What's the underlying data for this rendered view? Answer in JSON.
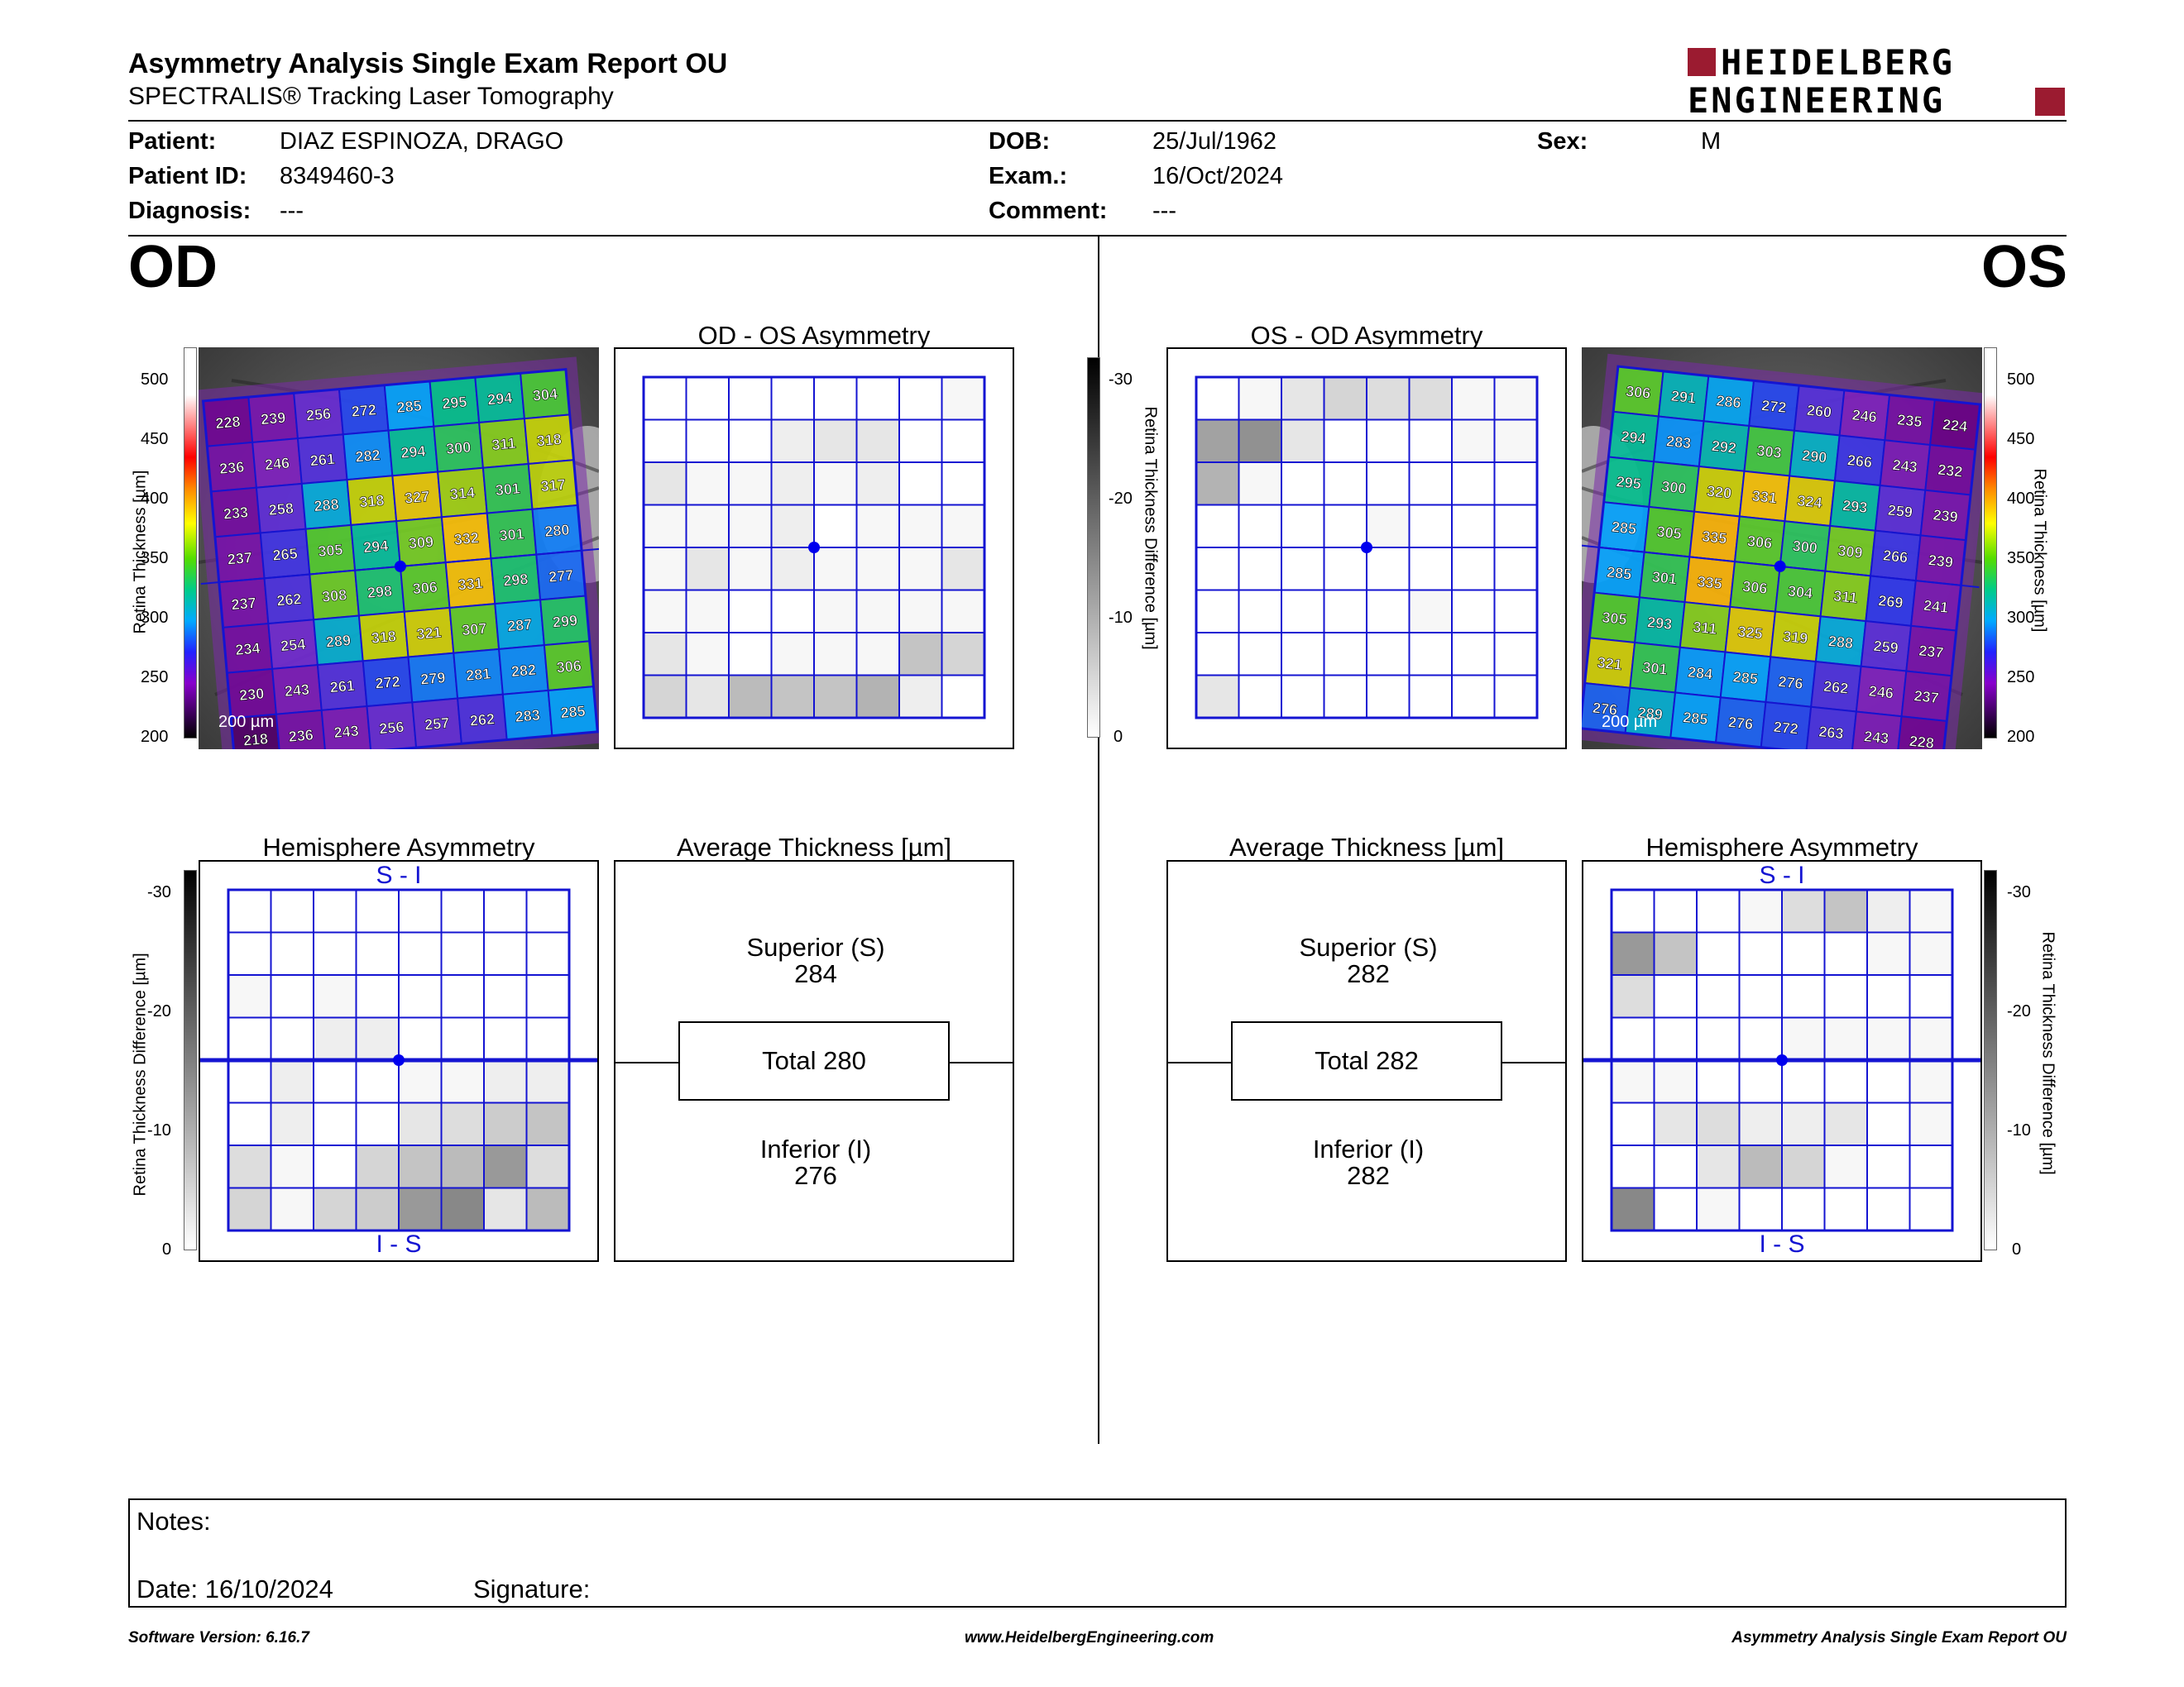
{
  "report": {
    "title": "Asymmetry Analysis Single Exam Report OU",
    "subtitle": "SPECTRALIS® Tracking Laser Tomography",
    "logo_line1": "HEIDELBERG",
    "logo_line2": "ENGINEERING",
    "brand_color": "#9b1b30"
  },
  "patient": {
    "name_label": "Patient:",
    "name": "DIAZ ESPINOZA, DRAGO",
    "id_label": "Patient ID:",
    "id": "8349460-3",
    "diagnosis_label": "Diagnosis:",
    "diagnosis": "---",
    "dob_label": "DOB:",
    "dob": "25/Jul/1962",
    "exam_label": "Exam.:",
    "exam": "16/Oct/2024",
    "comment_label": "Comment:",
    "comment": "---",
    "sex_label": "Sex:",
    "sex": "M"
  },
  "od": {
    "eye": "OD",
    "asym_title": "OD - OS Asymmetry",
    "hemi_title": "Hemisphere Asymmetry",
    "avg_title": "Average Thickness [µm]",
    "scale_bar": "200 µm",
    "superior_label": "Superior (S)",
    "superior_value": "284",
    "total_label": "Total 280",
    "inferior_label": "Inferior (I)",
    "inferior_value": "276",
    "si_label": "S - I",
    "is_label": "I - S",
    "thickness_grid": [
      [
        228,
        239,
        256,
        272,
        285,
        295,
        294,
        304
      ],
      [
        236,
        246,
        261,
        282,
        294,
        300,
        311,
        318
      ],
      [
        233,
        258,
        288,
        318,
        327,
        314,
        301,
        317
      ],
      [
        237,
        265,
        305,
        294,
        309,
        332,
        301,
        280
      ],
      [
        237,
        262,
        308,
        298,
        306,
        331,
        298,
        277
      ],
      [
        234,
        254,
        289,
        318,
        321,
        307,
        287,
        299
      ],
      [
        230,
        243,
        261,
        272,
        279,
        281,
        282,
        306
      ],
      [
        218,
        236,
        243,
        256,
        257,
        262,
        283,
        285
      ]
    ],
    "asym_grid": [
      [
        0,
        0,
        0,
        0,
        0,
        0,
        0,
        1
      ],
      [
        0,
        0,
        0,
        2,
        3,
        3,
        0,
        0
      ],
      [
        3,
        1,
        1,
        2,
        1,
        2,
        0,
        0
      ],
      [
        1,
        1,
        1,
        2,
        0,
        1,
        1,
        1
      ],
      [
        1,
        3,
        1,
        2,
        1,
        1,
        1,
        3
      ],
      [
        1,
        1,
        0,
        0,
        1,
        1,
        1,
        1
      ],
      [
        3,
        1,
        0,
        1,
        1,
        1,
        7,
        5
      ],
      [
        5,
        3,
        8,
        7,
        7,
        9,
        2,
        0
      ]
    ],
    "hemi_grid": [
      [
        0,
        0,
        0,
        0,
        0,
        0,
        0,
        0
      ],
      [
        0,
        0,
        0,
        0,
        0,
        0,
        0,
        0
      ],
      [
        1,
        0,
        1,
        0,
        0,
        0,
        0,
        0
      ],
      [
        0,
        0,
        2,
        2,
        0,
        0,
        0,
        0
      ],
      [
        0,
        2,
        0,
        0,
        1,
        1,
        2,
        2
      ],
      [
        0,
        2,
        0,
        0,
        3,
        4,
        6,
        7
      ],
      [
        4,
        1,
        0,
        5,
        7,
        8,
        12,
        4
      ],
      [
        5,
        1,
        5,
        6,
        12,
        14,
        3,
        8
      ]
    ]
  },
  "os": {
    "eye": "OS",
    "asym_title": "OS - OD Asymmetry",
    "hemi_title": "Hemisphere Asymmetry",
    "avg_title": "Average Thickness [µm]",
    "scale_bar": "200 µm",
    "superior_label": "Superior (S)",
    "superior_value": "282",
    "total_label": "Total 282",
    "inferior_label": "Inferior (I)",
    "inferior_value": "282",
    "si_label": "S - I",
    "is_label": "I - S",
    "thickness_grid": [
      [
        306,
        291,
        286,
        272,
        260,
        246,
        235,
        224
      ],
      [
        294,
        283,
        292,
        303,
        290,
        266,
        243,
        232
      ],
      [
        295,
        300,
        320,
        331,
        324,
        293,
        259,
        239
      ],
      [
        285,
        305,
        335,
        306,
        300,
        309,
        266,
        239
      ],
      [
        285,
        301,
        335,
        306,
        304,
        311,
        269,
        241
      ],
      [
        305,
        293,
        311,
        325,
        319,
        288,
        259,
        237
      ],
      [
        321,
        301,
        284,
        285,
        276,
        262,
        246,
        237
      ],
      [
        276,
        289,
        285,
        276,
        272,
        263,
        243,
        228
      ]
    ],
    "asym_grid": [
      [
        0,
        1,
        3,
        5,
        4,
        4,
        1,
        1
      ],
      [
        11,
        13,
        3,
        0,
        0,
        0,
        1,
        1
      ],
      [
        9,
        1,
        0,
        0,
        0,
        0,
        0,
        0
      ],
      [
        0,
        0,
        0,
        0,
        1,
        0,
        0,
        0
      ],
      [
        0,
        0,
        0,
        0,
        0,
        0,
        0,
        0
      ],
      [
        0,
        0,
        0,
        0,
        0,
        1,
        0,
        0
      ],
      [
        0,
        0,
        0,
        0,
        0,
        0,
        0,
        0
      ],
      [
        3,
        0,
        0,
        0,
        0,
        0,
        0,
        0
      ]
    ],
    "hemi_grid": [
      [
        0,
        0,
        0,
        1,
        4,
        7,
        2,
        1
      ],
      [
        12,
        7,
        0,
        0,
        0,
        0,
        1,
        1
      ],
      [
        4,
        0,
        0,
        0,
        0,
        0,
        0,
        0
      ],
      [
        0,
        0,
        0,
        0,
        1,
        1,
        1,
        1
      ],
      [
        1,
        1,
        0,
        0,
        0,
        0,
        0,
        1
      ],
      [
        0,
        3,
        4,
        2,
        2,
        3,
        0,
        1
      ],
      [
        0,
        0,
        3,
        8,
        5,
        1,
        0,
        0
      ],
      [
        14,
        0,
        1,
        0,
        0,
        0,
        0,
        0
      ]
    ]
  },
  "scales": {
    "thickness_axis_title": "Retina Thickness [µm]",
    "thickness_ticks": [
      "500",
      "450",
      "400",
      "350",
      "300",
      "250",
      "200"
    ],
    "diff_axis_title": "Retina Thickness Difference [µm]",
    "diff_ticks": [
      "-30",
      "-20",
      "-10",
      "0"
    ]
  },
  "notes": {
    "notes_label": "Notes:",
    "date_label": "Date: 16/10/2024",
    "signature_label": "Signature:"
  },
  "footer": {
    "version": "Software Version: 6.16.7",
    "website": "www.HeidelbergEngineering.com",
    "report_name": "Asymmetry Analysis Single Exam Report OU"
  },
  "colors": {
    "grid_line": "#1414d2",
    "fovea_dot": "#0000ee"
  }
}
